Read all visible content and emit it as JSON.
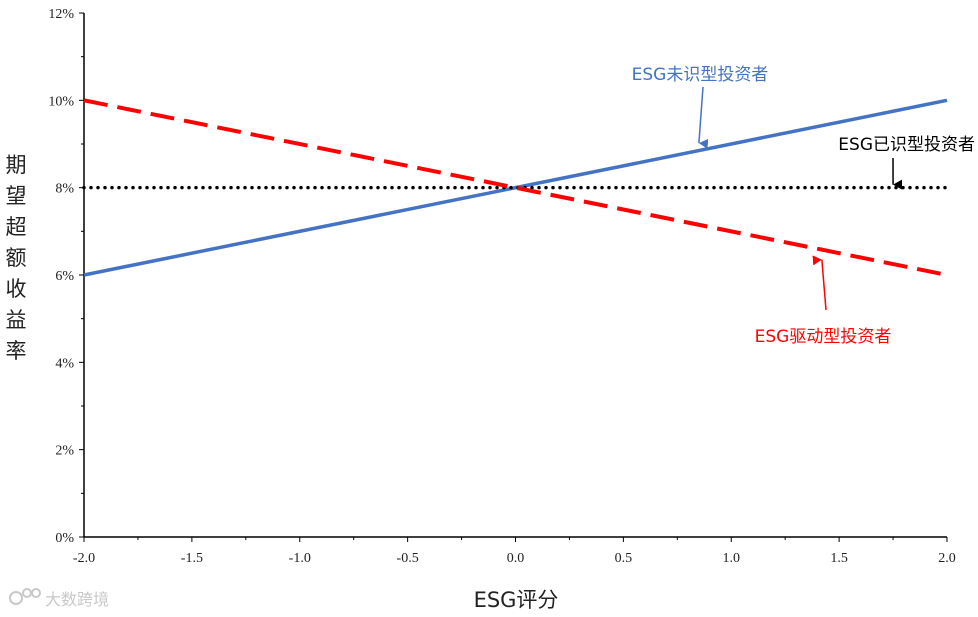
{
  "chart_data": {
    "type": "line",
    "xlabel": "ESG评分",
    "ylabel": "期望超额收益率",
    "xlim": [
      -2.0,
      2.0
    ],
    "ylim": [
      0,
      0.12
    ],
    "x_ticks": [
      "-2.0",
      "-1.5",
      "-1.0",
      "-0.5",
      "0.0",
      "0.5",
      "1.0",
      "1.5",
      "2.0"
    ],
    "y_ticks": [
      "0%",
      "2%",
      "4%",
      "6%",
      "8%",
      "10%",
      "12%"
    ],
    "grid": false,
    "series": [
      {
        "name": "ESG未识型投资者",
        "style": "solid",
        "color": "#4472c4",
        "x": [
          -2.0,
          2.0
        ],
        "y": [
          0.06,
          0.1
        ]
      },
      {
        "name": "ESG已识型投资者",
        "style": "dotted",
        "color": "#000000",
        "x": [
          -2.0,
          2.0
        ],
        "y": [
          0.08,
          0.08
        ]
      },
      {
        "name": "ESG驱动型投资者",
        "style": "dashed",
        "color": "#ff0000",
        "x": [
          -2.0,
          2.0
        ],
        "y": [
          0.1,
          0.06
        ]
      }
    ],
    "annotations": [
      {
        "text": "ESG未识型投资者",
        "color": "#4472c4",
        "arrow_to": [
          0.85,
          0.0895
        ]
      },
      {
        "text": "ESG已识型投资者",
        "color": "#000000",
        "arrow_to": [
          1.75,
          0.08
        ]
      },
      {
        "text": "ESG驱动型投资者",
        "color": "#ff0000",
        "arrow_to": [
          1.42,
          0.0642
        ]
      }
    ]
  },
  "watermark": {
    "text": "大数跨境"
  }
}
